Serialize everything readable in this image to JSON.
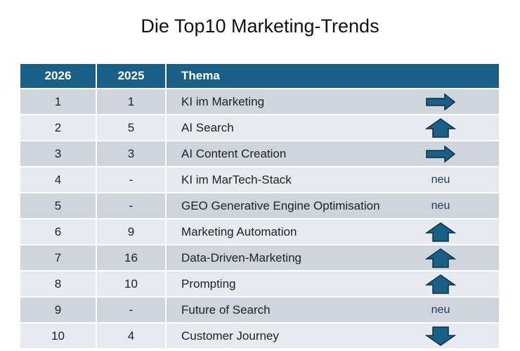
{
  "title": "Die Top10 Marketing-Trends",
  "headers": {
    "col2026": "2026",
    "col2025": "2025",
    "thema": "Thema"
  },
  "colors": {
    "header": "#1a5f85",
    "arrow": "#1a5f85",
    "row_odd": "#cfd5dd",
    "row_even": "#e7eaee"
  },
  "rows": [
    {
      "r2026": "1",
      "r2025": "1",
      "thema": "KI im Marketing",
      "trend": "arrow-right"
    },
    {
      "r2026": "2",
      "r2025": "5",
      "thema": "AI Search",
      "trend": "arrow-up"
    },
    {
      "r2026": "3",
      "r2025": "3",
      "thema": "AI Content Creation",
      "trend": "arrow-right"
    },
    {
      "r2026": "4",
      "r2025": "-",
      "thema": "KI im MarTech-Stack",
      "trend": "neu",
      "label": "neu"
    },
    {
      "r2026": "5",
      "r2025": "-",
      "thema": "GEO Generative Engine Optimisation",
      "trend": "neu",
      "label": "neu"
    },
    {
      "r2026": "6",
      "r2025": "9",
      "thema": "Marketing Automation",
      "trend": "arrow-up"
    },
    {
      "r2026": "7",
      "r2025": "16",
      "thema": "Data-Driven-Marketing",
      "trend": "arrow-up"
    },
    {
      "r2026": "8",
      "r2025": "10",
      "thema": "Prompting",
      "trend": "arrow-up"
    },
    {
      "r2026": "9",
      "r2025": "-",
      "thema": "Future of Search",
      "trend": "neu",
      "label": "neu"
    },
    {
      "r2026": "10",
      "r2025": "4",
      "thema": "Customer Journey",
      "trend": "arrow-down"
    }
  ]
}
